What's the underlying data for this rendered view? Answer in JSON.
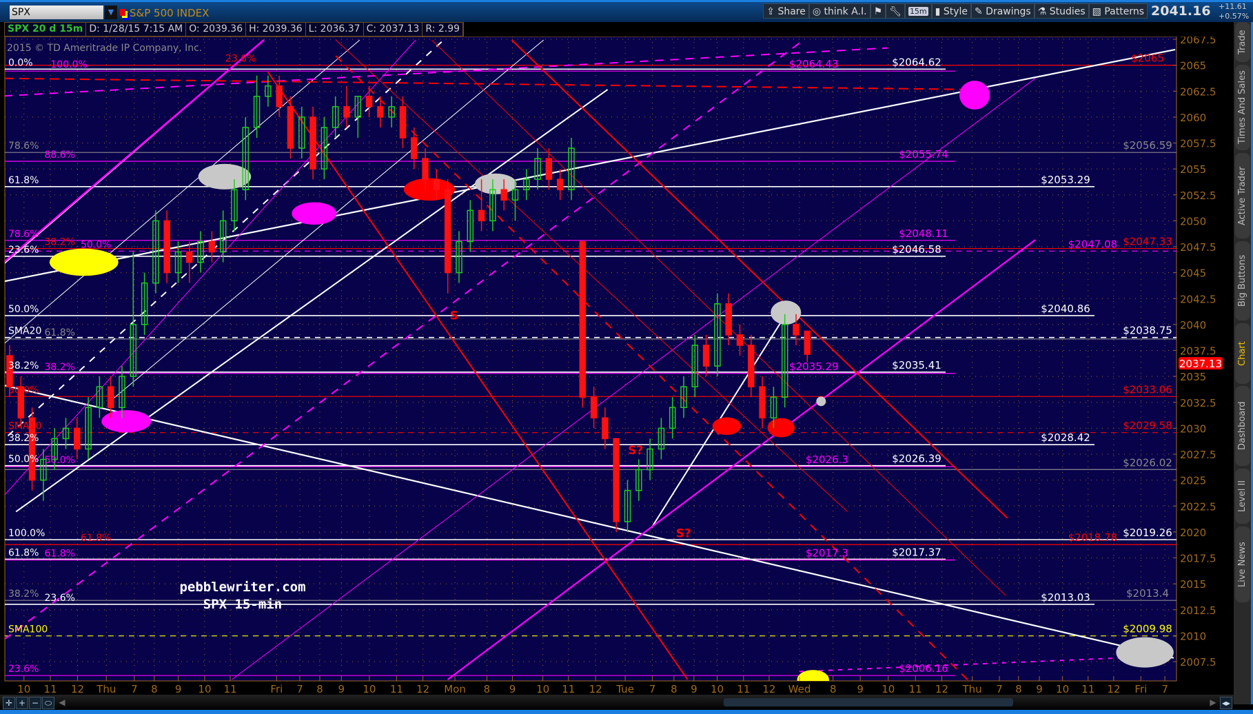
{
  "header": {
    "symbol": "SPX",
    "symbol_name": "S&P 500 INDEX",
    "toolbar": [
      "Share",
      "think A.I.",
      "15m",
      "Style",
      "Drawings",
      "Studies",
      "Patterns"
    ],
    "last_price": "2041.16",
    "net_change": "+11.61",
    "pct_change": "+0.57%"
  },
  "infobar": {
    "study": "SPX 20 d 15m",
    "date": "D: 1/28/15 7:15 AM",
    "open": "O: 2039.36",
    "high": "H: 2039.36",
    "low": "L: 2036.37",
    "close": "C: 2037.13",
    "range": "R: 2.99"
  },
  "side_tabs": [
    "Trade",
    "Times And Sales",
    "Active Trader",
    "Big Buttons",
    "Chart",
    "Dashboard",
    "Level II",
    "Live News"
  ],
  "active_tab": "Chart",
  "copyright": "2015 © TD Ameritrade IP Company, Inc.",
  "watermark": [
    "pebblewriter.com",
    "SPX 15-min"
  ],
  "colors": {
    "background": "#07024a",
    "up": "#22cc22",
    "down": "#ff1111",
    "white": "#ffffff",
    "magenta": "#ff00ff",
    "red": "#ff0000",
    "yellow": "#ffff00",
    "gray": "#8a8a8a",
    "axis": "#a06a20"
  },
  "chart_data": {
    "type": "candlestick",
    "title": "",
    "ylim": [
      2005,
      2067.5
    ],
    "y_ticks": [
      2067.5,
      2065,
      2062.5,
      2060,
      2057.5,
      2055,
      2052.5,
      2050,
      2047.5,
      2045,
      2042.5,
      2040,
      2037.5,
      2035,
      2032.5,
      2030,
      2027.5,
      2025,
      2022.5,
      2020,
      2017.5,
      2015,
      2012.5,
      2010,
      2007.5
    ],
    "x_ticks": [
      "10",
      "11",
      "12",
      "Thu",
      "7",
      "8",
      "9",
      "10",
      "11",
      "Fri",
      "7",
      "8",
      "9",
      "10",
      "11",
      "12",
      "Mon",
      "8",
      "9",
      "10",
      "11",
      "12",
      "Tue",
      "7",
      "8",
      "9",
      "10",
      "11",
      "12",
      "Wed",
      "8",
      "9",
      "10",
      "11",
      "12",
      "Thu",
      "7",
      "8",
      "9",
      "10",
      "11",
      "12",
      "Fri",
      "7"
    ],
    "current_price_label": "2037.13",
    "candles_ohlc": [
      [
        2037,
        2038,
        2033,
        2034
      ],
      [
        2034,
        2035,
        2030,
        2031
      ],
      [
        2031,
        2032,
        2024,
        2025
      ],
      [
        2025,
        2028,
        2023,
        2027
      ],
      [
        2027,
        2030,
        2026,
        2029
      ],
      [
        2029,
        2031,
        2028,
        2030
      ],
      [
        2030,
        2031,
        2027,
        2028
      ],
      [
        2028,
        2033,
        2027,
        2032
      ],
      [
        2032,
        2035,
        2031,
        2034
      ],
      [
        2034,
        2035,
        2031,
        2032
      ],
      [
        2032,
        2036,
        2031,
        2035
      ],
      [
        2035,
        2047,
        2034,
        2040
      ],
      [
        2040,
        2045,
        2039,
        2044
      ],
      [
        2044,
        2051,
        2043,
        2050
      ],
      [
        2050,
        2051,
        2044,
        2045
      ],
      [
        2045,
        2048,
        2044,
        2047
      ],
      [
        2047,
        2048,
        2044,
        2046
      ],
      [
        2046,
        2049,
        2045,
        2048
      ],
      [
        2048,
        2049,
        2046,
        2047
      ],
      [
        2047,
        2051,
        2046,
        2050
      ],
      [
        2050,
        2054,
        2049,
        2053
      ],
      [
        2053,
        2060,
        2052,
        2059
      ],
      [
        2059,
        2064,
        2058,
        2062
      ],
      [
        2062,
        2064,
        2061,
        2063
      ],
      [
        2063,
        2064,
        2060,
        2061
      ],
      [
        2061,
        2062,
        2056,
        2057
      ],
      [
        2057,
        2061,
        2056,
        2060
      ],
      [
        2060,
        2061,
        2054,
        2055
      ],
      [
        2055,
        2060,
        2054,
        2059
      ],
      [
        2059,
        2062,
        2058,
        2061
      ],
      [
        2061,
        2063,
        2059,
        2060
      ],
      [
        2060,
        2062,
        2058,
        2062
      ],
      [
        2062,
        2063,
        2060,
        2061
      ],
      [
        2061,
        2062,
        2059,
        2060
      ],
      [
        2060,
        2062,
        2059,
        2061
      ],
      [
        2061,
        2062,
        2057,
        2058
      ],
      [
        2058,
        2059,
        2055,
        2056
      ],
      [
        2056,
        2057,
        2053,
        2054
      ],
      [
        2054,
        2055,
        2052,
        2053
      ],
      [
        2053,
        2054,
        2043,
        2045
      ],
      [
        2045,
        2049,
        2044,
        2048
      ],
      [
        2048,
        2052,
        2047,
        2051
      ],
      [
        2051,
        2054,
        2049,
        2050
      ],
      [
        2050,
        2054,
        2049,
        2053
      ],
      [
        2053,
        2054,
        2051,
        2052
      ],
      [
        2052,
        2054,
        2050,
        2053
      ],
      [
        2053,
        2055,
        2052,
        2054
      ],
      [
        2054,
        2057,
        2053,
        2056
      ],
      [
        2056,
        2057,
        2053,
        2054
      ],
      [
        2054,
        2055,
        2052,
        2053
      ],
      [
        2053,
        2058,
        2052,
        2057
      ],
      [
        2048,
        2048,
        2032,
        2033
      ],
      [
        2033,
        2034,
        2030,
        2031
      ],
      [
        2031,
        2032,
        2028,
        2029
      ],
      [
        2029,
        2029,
        2020,
        2021
      ],
      [
        2021,
        2025,
        2020,
        2024
      ],
      [
        2024,
        2027,
        2023,
        2026
      ],
      [
        2026,
        2029,
        2025,
        2028
      ],
      [
        2028,
        2031,
        2027,
        2030
      ],
      [
        2030,
        2033,
        2029,
        2032
      ],
      [
        2032,
        2035,
        2031,
        2034
      ],
      [
        2034,
        2039,
        2033,
        2038
      ],
      [
        2038,
        2039,
        2035,
        2036
      ],
      [
        2036,
        2043,
        2035,
        2042
      ],
      [
        2042,
        2043,
        2038,
        2039
      ],
      [
        2039,
        2040,
        2037,
        2038
      ],
      [
        2038,
        2039,
        2033,
        2034
      ],
      [
        2034,
        2035,
        2030,
        2031
      ],
      [
        2031,
        2034,
        2030,
        2033
      ],
      [
        2033,
        2041,
        2032,
        2040
      ],
      [
        2040,
        2041,
        2038,
        2039
      ],
      [
        2039.36,
        2039.36,
        2036.37,
        2037.13
      ]
    ],
    "levels": [
      {
        "price": 2065,
        "color": "red",
        "style": "solid",
        "extent": "full",
        "label": "$2065",
        "left": "23.6%"
      },
      {
        "price": 2064.62,
        "color": "white",
        "style": "solid",
        "extent": "short",
        "label": "$2064.62",
        "left": "0.0%"
      },
      {
        "price": 2064.43,
        "color": "magenta",
        "style": "solid",
        "extent": "short2",
        "label": "$2064.43",
        "left": "100.0%"
      },
      {
        "price": 2056.59,
        "color": "gray",
        "style": "solid",
        "extent": "full",
        "label": "$2056.59",
        "left": "78.6%"
      },
      {
        "price": 2055.74,
        "color": "magenta",
        "style": "solid",
        "extent": "short2",
        "label": "$2055.74",
        "left": "88.6%"
      },
      {
        "price": 2053.29,
        "color": "white",
        "style": "solid",
        "extent": "long",
        "label": "$2053.29",
        "left": "61.8%"
      },
      {
        "price": 2048.11,
        "color": "magenta",
        "style": "solid",
        "extent": "short2",
        "label": "$2048.11",
        "left": "78.6%"
      },
      {
        "price": 2047.33,
        "color": "red",
        "style": "solid",
        "extent": "full",
        "label": "$2047.33",
        "left": "38.2%"
      },
      {
        "price": 2047.08,
        "color": "magenta",
        "style": "dashed",
        "extent": "full",
        "label": "$2047.08",
        "left": "50.0%"
      },
      {
        "price": 2046.58,
        "color": "white",
        "style": "solid",
        "extent": "short",
        "label": "$2046.58",
        "left": "23.6%"
      },
      {
        "price": 2040.86,
        "color": "white",
        "style": "solid",
        "extent": "long",
        "label": "$2040.86",
        "left": "50.0%"
      },
      {
        "price": 2038.75,
        "color": "white",
        "style": "dashed",
        "extent": "full",
        "label": "$2038.75",
        "left": "SMA20"
      },
      {
        "price": 2038.6,
        "color": "gray",
        "style": "solid",
        "extent": "full",
        "label": "",
        "left": "61.8%"
      },
      {
        "price": 2035.41,
        "color": "white",
        "style": "solid",
        "extent": "short",
        "label": "$2035.41",
        "left": "38.2%"
      },
      {
        "price": 2035.29,
        "color": "magenta",
        "style": "solid",
        "extent": "short2",
        "label": "$2035.29",
        "left": "38.2%"
      },
      {
        "price": 2033.06,
        "color": "red",
        "style": "solid",
        "extent": "full",
        "label": "$2033.06",
        "left": "50.0%"
      },
      {
        "price": 2029.58,
        "color": "red",
        "style": "dashed",
        "extent": "full",
        "label": "$2029.58",
        "left": "SMA10"
      },
      {
        "price": 2028.42,
        "color": "white",
        "style": "solid",
        "extent": "long",
        "label": "$2028.42",
        "left": "38.2%"
      },
      {
        "price": 2026.39,
        "color": "white",
        "style": "solid",
        "extent": "short",
        "label": "$2026.39",
        "left": "50.0%"
      },
      {
        "price": 2026.3,
        "color": "magenta",
        "style": "solid",
        "extent": "short2",
        "label": "$2026.3",
        "left": "50.0%"
      },
      {
        "price": 2026.02,
        "color": "gray",
        "style": "solid",
        "extent": "full",
        "label": "$2026.02",
        "left": ""
      },
      {
        "price": 2019.26,
        "color": "white",
        "style": "solid",
        "extent": "full",
        "label": "$2019.26",
        "left": "100.0%"
      },
      {
        "price": 2018.78,
        "color": "red",
        "style": "solid",
        "extent": "full",
        "label": "$2018.78",
        "left": "61.8%"
      },
      {
        "price": 2017.37,
        "color": "white",
        "style": "solid",
        "extent": "short",
        "label": "$2017.37",
        "left": "61.8%"
      },
      {
        "price": 2017.3,
        "color": "magenta",
        "style": "solid",
        "extent": "short2",
        "label": "$2017.3",
        "left": "61.8%"
      },
      {
        "price": 2013.4,
        "color": "gray",
        "style": "solid",
        "extent": "full",
        "label": "$2013.4",
        "left": "38.2%"
      },
      {
        "price": 2013.03,
        "color": "white",
        "style": "solid",
        "extent": "long",
        "label": "$2013.03",
        "left": "23.6%"
      },
      {
        "price": 2009.98,
        "color": "yellow",
        "style": "dashed",
        "extent": "full",
        "label": "$2009.98",
        "left": "SMA100"
      },
      {
        "price": 2006.16,
        "color": "magenta",
        "style": "solid",
        "extent": "short2",
        "label": "$2006.16",
        "left": "23.6%"
      }
    ],
    "annotations": [
      {
        "text": "S",
        "price": 2040.5
      },
      {
        "text": "S?",
        "price": 2027.5
      },
      {
        "text": "S?",
        "price": 2019.5
      }
    ]
  }
}
